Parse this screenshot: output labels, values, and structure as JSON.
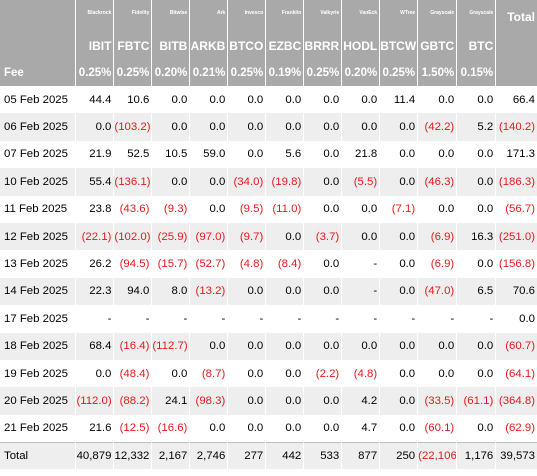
{
  "table": {
    "issuers": [
      "Blackrock",
      "Fidelity",
      "Bitwise",
      "Ark",
      "Invesco",
      "Franklin",
      "Valkyrie",
      "VanEck",
      "WTree",
      "Grayscale",
      "Grayscale"
    ],
    "tickers": [
      "IBIT",
      "FBTC",
      "BITB",
      "ARKB",
      "BTCO",
      "EZBC",
      "BRRR",
      "HODL",
      "BTCW",
      "GBTC",
      "BTC"
    ],
    "total_header": "Total",
    "fee_label": "Fee",
    "fees": [
      "0.25%",
      "0.25%",
      "0.20%",
      "0.21%",
      "0.25%",
      "0.19%",
      "0.25%",
      "0.20%",
      "0.25%",
      "1.50%",
      "0.15%"
    ],
    "rows": [
      {
        "date": "05 Feb 2025",
        "values": [
          "44.4",
          "10.6",
          "0.0",
          "0.0",
          "0.0",
          "0.0",
          "0.0",
          "0.0",
          "11.4",
          "0.0",
          "0.0"
        ],
        "total": "66.4"
      },
      {
        "date": "06 Feb 2025",
        "values": [
          "0.0",
          "(103.2)",
          "0.0",
          "0.0",
          "0.0",
          "0.0",
          "0.0",
          "0.0",
          "0.0",
          "(42.2)",
          "5.2"
        ],
        "total": "(140.2)"
      },
      {
        "date": "07 Feb 2025",
        "values": [
          "21.9",
          "52.5",
          "10.5",
          "59.0",
          "0.0",
          "5.6",
          "0.0",
          "21.8",
          "0.0",
          "0.0",
          "0.0"
        ],
        "total": "171.3"
      },
      {
        "date": "10 Feb 2025",
        "values": [
          "55.4",
          "(136.1)",
          "0.0",
          "0.0",
          "(34.0)",
          "(19.8)",
          "0.0",
          "(5.5)",
          "0.0",
          "(46.3)",
          "0.0"
        ],
        "total": "(186.3)"
      },
      {
        "date": "11 Feb 2025",
        "values": [
          "23.8",
          "(43.6)",
          "(9.3)",
          "0.0",
          "(9.5)",
          "(11.0)",
          "0.0",
          "0.0",
          "(7.1)",
          "0.0",
          "0.0"
        ],
        "total": "(56.7)"
      },
      {
        "date": "12 Feb 2025",
        "values": [
          "(22.1)",
          "(102.0)",
          "(25.9)",
          "(97.0)",
          "(9.7)",
          "0.0",
          "(3.7)",
          "0.0",
          "0.0",
          "(6.9)",
          "16.3"
        ],
        "total": "(251.0)"
      },
      {
        "date": "13 Feb 2025",
        "values": [
          "26.2",
          "(94.5)",
          "(15.7)",
          "(52.7)",
          "(4.8)",
          "(8.4)",
          "0.0",
          "-",
          "0.0",
          "(6.9)",
          "0.0"
        ],
        "total": "(156.8)"
      },
      {
        "date": "14 Feb 2025",
        "values": [
          "22.3",
          "94.0",
          "8.0",
          "(13.2)",
          "0.0",
          "0.0",
          "0.0",
          "-",
          "0.0",
          "(47.0)",
          "6.5"
        ],
        "total": "70.6"
      },
      {
        "date": "17 Feb 2025",
        "values": [
          "-",
          "-",
          "-",
          "-",
          "-",
          "-",
          "-",
          "-",
          "-",
          "-",
          "-"
        ],
        "total": "0.0"
      },
      {
        "date": "18 Feb 2025",
        "values": [
          "68.4",
          "(16.4)",
          "(112.7)",
          "0.0",
          "0.0",
          "0.0",
          "0.0",
          "0.0",
          "0.0",
          "0.0",
          "0.0"
        ],
        "total": "(60.7)"
      },
      {
        "date": "19 Feb 2025",
        "values": [
          "0.0",
          "(48.4)",
          "0.0",
          "(8.7)",
          "0.0",
          "0.0",
          "(2.2)",
          "(4.8)",
          "0.0",
          "0.0",
          "0.0"
        ],
        "total": "(64.1)"
      },
      {
        "date": "20 Feb 2025",
        "values": [
          "(112.0)",
          "(88.2)",
          "24.1",
          "(98.3)",
          "0.0",
          "0.0",
          "0.0",
          "4.2",
          "0.0",
          "(33.5)",
          "(61.1)"
        ],
        "total": "(364.8)"
      },
      {
        "date": "21 Feb 2025",
        "values": [
          "21.6",
          "(12.5)",
          "(16.6)",
          "0.0",
          "0.0",
          "0.0",
          "0.0",
          "4.7",
          "0.0",
          "(60.1)",
          "0.0"
        ],
        "total": "(62.9)"
      }
    ],
    "totals": {
      "label": "Total",
      "values": [
        "40,879",
        "12,332",
        "2,167",
        "2,746",
        "277",
        "442",
        "533",
        "877",
        "250",
        "(22,106)",
        "1,176"
      ],
      "total": "39,573"
    }
  },
  "colors": {
    "header_bg": "#a9a9a9",
    "header_text": "#ffffff",
    "negative": "#e8191b",
    "stripe": "#eeeeee"
  }
}
